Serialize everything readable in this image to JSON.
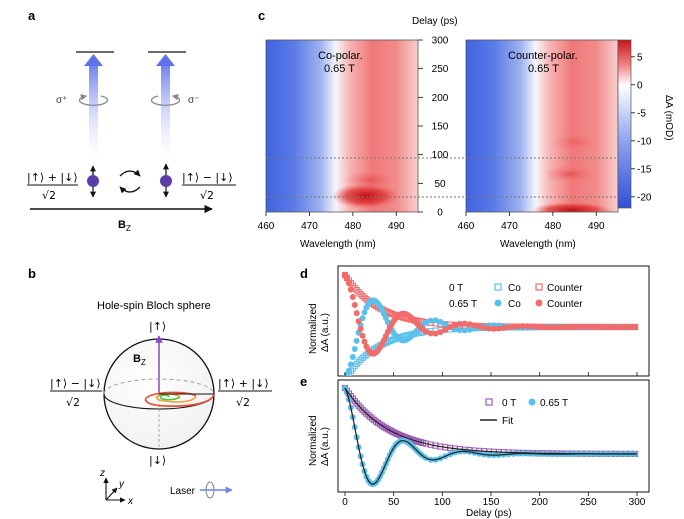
{
  "panels": {
    "a": "a",
    "b": "b",
    "c": "c",
    "d": "d",
    "e": "e"
  },
  "panel_a": {
    "sigma_plus": "σ⁺",
    "sigma_minus": "σ⁻",
    "state_left_num": "|↑⟩ + |↓⟩",
    "state_left_den": "√2",
    "state_right_num": "|↑⟩ − |↓⟩",
    "state_right_den": "√2",
    "field_label": "B",
    "field_sub": "Z"
  },
  "panel_b": {
    "title": "Hole-spin Bloch sphere",
    "up": "|↑⟩",
    "down": "|↓⟩",
    "left_num": "|↑⟩ − |↓⟩",
    "left_den": "√2",
    "right_num": "|↑⟩ + |↓⟩",
    "right_den": "√2",
    "field_label": "B",
    "field_sub": "Z",
    "axis_z": "z",
    "axis_y": "y",
    "axis_x": "x",
    "laser": "Laser"
  },
  "panel_c": {
    "delay_axis_title": "Delay (ps)",
    "xlabel_left": "Wavelength (nm)",
    "xlabel_right": "Wavelength (nm)",
    "left_title_1": "Co-polar.",
    "left_title_2": "0.65 T",
    "right_title_1": "Counter-polar.",
    "right_title_2": "0.65 T",
    "colorbar_label": "ΔA (mOD)",
    "x_ticks": [
      "460",
      "470",
      "480",
      "490"
    ],
    "delay_ticks": [
      "0",
      "50",
      "100",
      "150",
      "200",
      "250",
      "300"
    ],
    "colorbar_ticks": [
      "5",
      "0",
      "-5",
      "-10",
      "-15",
      "-20"
    ],
    "colors": {
      "negative": "#3b5bdb",
      "zero": "#ffffff",
      "positive": "#d7191c"
    }
  },
  "chart_data": [
    {
      "type": "heatmap",
      "title": "Co-polar. 0.65 T",
      "xlabel": "Wavelength (nm)",
      "ylabel": "Delay (ps)",
      "xlim": [
        460,
        495
      ],
      "ylim": [
        0,
        300
      ],
      "colorbar": {
        "label": "ΔA (mOD)",
        "range": [
          -22,
          8
        ]
      },
      "features": [
        {
          "region": "negative (bleach)",
          "wavelength": [
            460,
            478
          ],
          "value": -20
        },
        {
          "region": "positive (absorption)",
          "wavelength": [
            479,
            495
          ],
          "value": 5
        },
        {
          "region": "early maximum",
          "wavelength": 485,
          "delay": 15,
          "value": 8
        }
      ],
      "dashed_delays": [
        95,
        28
      ]
    },
    {
      "type": "heatmap",
      "title": "Counter-polar. 0.65 T",
      "xlabel": "Wavelength (nm)",
      "ylabel": "Delay (ps)",
      "xlim": [
        460,
        495
      ],
      "ylim": [
        0,
        300
      ],
      "colorbar": {
        "label": "ΔA (mOD)",
        "range": [
          -22,
          8
        ]
      },
      "features": [
        {
          "region": "negative (bleach)",
          "wavelength": [
            460,
            478
          ],
          "value": -20
        },
        {
          "region": "positive (absorption)",
          "wavelength": [
            479,
            495
          ],
          "value": 5
        },
        {
          "region": "early maximum",
          "wavelength": 485,
          "delay": 2,
          "value": 8
        }
      ],
      "dashed_delays": [
        95,
        28
      ]
    },
    {
      "type": "scatter",
      "panel": "d",
      "ylabel": "Normalized ΔA (a.u.)",
      "xlim": [
        -10,
        300
      ],
      "legend": {
        "row_labels": [
          "0 T",
          "0.65 T"
        ],
        "col_labels": [
          "Co",
          "Counter"
        ],
        "placement": "top-right"
      },
      "series": [
        {
          "name": "0 T Co",
          "marker": "open-square",
          "color": "#5bc0eb",
          "model": "exp_decay",
          "tau_ps": 35
        },
        {
          "name": "0 T Counter",
          "marker": "open-square",
          "color": "#f26b6b",
          "model": "exp_decay",
          "tau_ps": 35
        },
        {
          "name": "0.65 T Co",
          "marker": "filled-circle",
          "color": "#5bc0eb",
          "model": "damped_oscillation",
          "period_ps": 62,
          "tau_ps": 45
        },
        {
          "name": "0.65 T Counter",
          "marker": "filled-circle",
          "color": "#f26b6b",
          "model": "damped_oscillation",
          "period_ps": 62,
          "tau_ps": 45
        }
      ]
    },
    {
      "type": "scatter",
      "panel": "e",
      "xlabel": "Delay (ps)",
      "ylabel": "Normalized ΔA (a.u.)",
      "xlim": [
        -10,
        300
      ],
      "x_ticks": [
        0,
        50,
        100,
        150,
        200,
        250,
        300
      ],
      "legend": {
        "entries": [
          "0 T",
          "0.65 T",
          "Fit"
        ],
        "placement": "top-right"
      },
      "series": [
        {
          "name": "0 T",
          "marker": "open-square",
          "color": "#9b59b6",
          "model": "exp_decay",
          "tau_ps": 45
        },
        {
          "name": "0.65 T",
          "marker": "filled-circle",
          "color": "#5bc0eb",
          "model": "damped_oscillation",
          "period_ps": 62,
          "tau_ps": 38
        },
        {
          "name": "Fit",
          "marker": "line",
          "color": "#222222"
        }
      ]
    }
  ],
  "panel_d": {
    "ylabel_1": "Normalized",
    "ylabel_2": "ΔA (a.u.)",
    "leg_row1": "0 T",
    "leg_row2": "0.65 T",
    "leg_co": "Co",
    "leg_counter": "Counter",
    "colors": {
      "co": "#5bc0eb",
      "counter": "#f26b6b"
    }
  },
  "panel_e": {
    "ylabel_1": "Normalized",
    "ylabel_2": "ΔA (a.u.)",
    "xlabel": "Delay (ps)",
    "x_ticks": [
      "0",
      "50",
      "100",
      "150",
      "200",
      "250",
      "300"
    ],
    "leg_0T": "0 T",
    "leg_065T": "0.65 T",
    "leg_fit": "Fit",
    "colors": {
      "zero_t": "#9b59b6",
      "field": "#5bc0eb",
      "fit": "#222222"
    }
  }
}
